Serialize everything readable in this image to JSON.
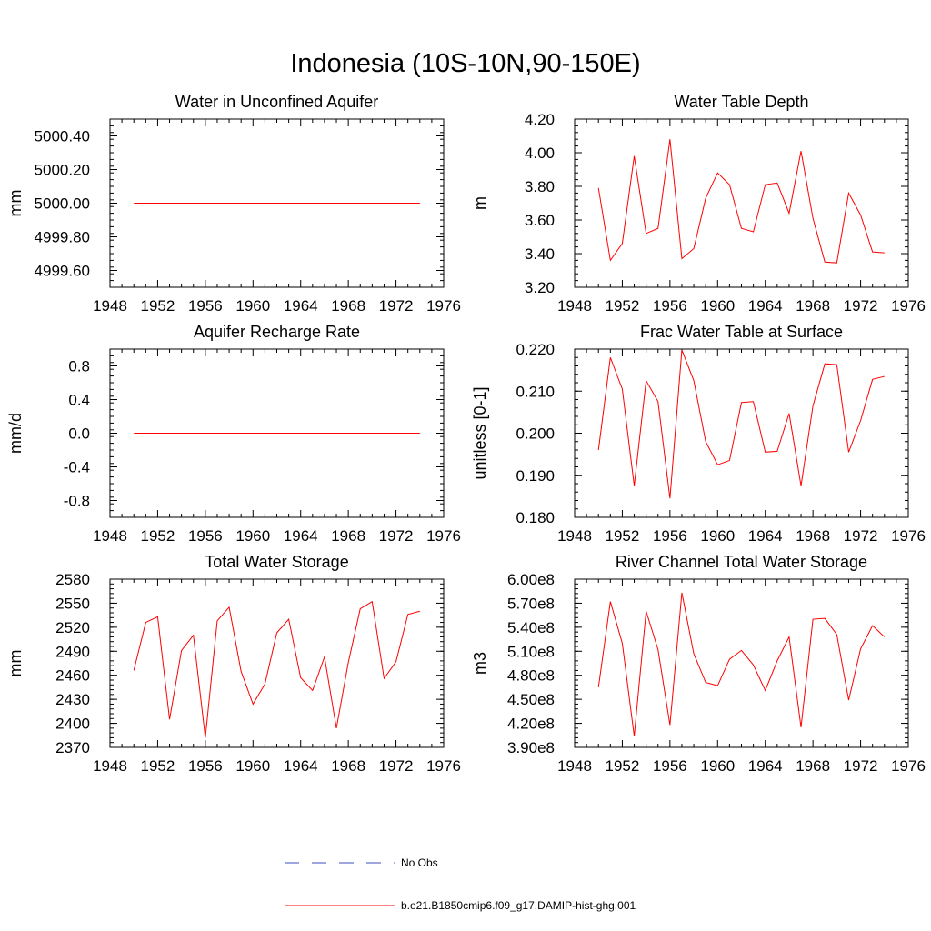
{
  "figure_title": "Indonesia (10S-10N,90-150E)",
  "colors": {
    "model_line": "#ff0000",
    "obs_line": "#3b4cc0",
    "axis": "#000000"
  },
  "legend": {
    "entries": [
      {
        "label": "No Obs",
        "style": "dashed",
        "color": "#3b4cc0"
      },
      {
        "label": "b.e21.B1850cmip6.f09_g17.DAMIP-hist-ghg.001",
        "style": "solid",
        "color": "#ff0000"
      }
    ]
  },
  "chart_data": [
    {
      "type": "line",
      "title": "Water in Unconfined Aquifer",
      "xlabel": "",
      "ylabel": "mm",
      "xlim": [
        1948,
        1976
      ],
      "ylim": [
        4999.5,
        5000.5
      ],
      "xticks": [
        1948,
        1952,
        1956,
        1960,
        1964,
        1968,
        1972,
        1976
      ],
      "yticks": [
        4999.6,
        4999.8,
        5000.0,
        5000.2,
        5000.4
      ],
      "ytick_labels": [
        "4999.60",
        "4999.80",
        "5000.00",
        "5000.20",
        "5000.40"
      ],
      "series": [
        {
          "x": [
            1950,
            1951,
            1952,
            1953,
            1954,
            1955,
            1956,
            1957,
            1958,
            1959,
            1960,
            1961,
            1962,
            1963,
            1964,
            1965,
            1966,
            1967,
            1968,
            1969,
            1970,
            1971,
            1972,
            1973,
            1974
          ],
          "values": [
            5000,
            5000,
            5000,
            5000,
            5000,
            5000,
            5000,
            5000,
            5000,
            5000,
            5000,
            5000,
            5000,
            5000,
            5000,
            5000,
            5000,
            5000,
            5000,
            5000,
            5000,
            5000,
            5000,
            5000,
            5000
          ]
        }
      ]
    },
    {
      "type": "line",
      "title": "Water Table Depth",
      "xlabel": "",
      "ylabel": "m",
      "xlim": [
        1948,
        1976
      ],
      "ylim": [
        3.2,
        4.2
      ],
      "xticks": [
        1948,
        1952,
        1956,
        1960,
        1964,
        1968,
        1972,
        1976
      ],
      "yticks": [
        3.2,
        3.4,
        3.6,
        3.8,
        4.0,
        4.2
      ],
      "ytick_labels": [
        "3.20",
        "3.40",
        "3.60",
        "3.80",
        "4.00",
        "4.20"
      ],
      "series": [
        {
          "x": [
            1950,
            1951,
            1952,
            1953,
            1954,
            1955,
            1956,
            1957,
            1958,
            1959,
            1960,
            1961,
            1962,
            1963,
            1964,
            1965,
            1966,
            1967,
            1968,
            1969,
            1970,
            1971,
            1972,
            1973,
            1974
          ],
          "values": [
            3.79,
            3.36,
            3.46,
            3.98,
            3.52,
            3.55,
            4.08,
            3.37,
            3.43,
            3.73,
            3.88,
            3.81,
            3.55,
            3.53,
            3.81,
            3.82,
            3.64,
            4.01,
            3.61,
            3.35,
            3.345,
            3.76,
            3.63,
            3.41,
            3.405
          ]
        }
      ]
    },
    {
      "type": "line",
      "title": "Aquifer Recharge Rate",
      "xlabel": "",
      "ylabel": "mm/d",
      "xlim": [
        1948,
        1976
      ],
      "ylim": [
        -1.0,
        1.0
      ],
      "xticks": [
        1948,
        1952,
        1956,
        1960,
        1964,
        1968,
        1972,
        1976
      ],
      "yticks": [
        -0.8,
        -0.4,
        0.0,
        0.4,
        0.8
      ],
      "ytick_labels": [
        "-0.8",
        "-0.4",
        "0.0",
        "0.4",
        "0.8"
      ],
      "series": [
        {
          "x": [
            1950,
            1951,
            1952,
            1953,
            1954,
            1955,
            1956,
            1957,
            1958,
            1959,
            1960,
            1961,
            1962,
            1963,
            1964,
            1965,
            1966,
            1967,
            1968,
            1969,
            1970,
            1971,
            1972,
            1973,
            1974
          ],
          "values": [
            0,
            0,
            0,
            0,
            0,
            0,
            0,
            0,
            0,
            0,
            0,
            0,
            0,
            0,
            0,
            0,
            0,
            0,
            0,
            0,
            0,
            0,
            0,
            0,
            0
          ]
        }
      ]
    },
    {
      "type": "line",
      "title": "Frac Water Table at Surface",
      "xlabel": "",
      "ylabel": "unitless [0-1]",
      "xlim": [
        1948,
        1976
      ],
      "ylim": [
        0.18,
        0.22
      ],
      "xticks": [
        1948,
        1952,
        1956,
        1960,
        1964,
        1968,
        1972,
        1976
      ],
      "yticks": [
        0.18,
        0.19,
        0.2,
        0.21,
        0.22
      ],
      "ytick_labels": [
        "0.180",
        "0.190",
        "0.200",
        "0.210",
        "0.220"
      ],
      "series": [
        {
          "x": [
            1950,
            1951,
            1952,
            1953,
            1954,
            1955,
            1956,
            1957,
            1958,
            1959,
            1960,
            1961,
            1962,
            1963,
            1964,
            1965,
            1966,
            1967,
            1968,
            1969,
            1970,
            1971,
            1972,
            1973,
            1974
          ],
          "values": [
            0.196,
            0.218,
            0.2105,
            0.1875,
            0.2125,
            0.2075,
            0.1845,
            0.2198,
            0.2125,
            0.198,
            0.1925,
            0.1935,
            0.2073,
            0.2075,
            0.1955,
            0.1957,
            0.2047,
            0.1875,
            0.2065,
            0.2165,
            0.2163,
            0.1955,
            0.203,
            0.2128,
            0.2135
          ]
        }
      ]
    },
    {
      "type": "line",
      "title": "Total Water Storage",
      "xlabel": "",
      "ylabel": "mm",
      "xlim": [
        1948,
        1976
      ],
      "ylim": [
        2370,
        2580
      ],
      "xticks": [
        1948,
        1952,
        1956,
        1960,
        1964,
        1968,
        1972,
        1976
      ],
      "yticks": [
        2370,
        2400,
        2430,
        2460,
        2490,
        2520,
        2550,
        2580
      ],
      "ytick_labels": [
        "2370",
        "2400",
        "2430",
        "2460",
        "2490",
        "2520",
        "2550",
        "2580"
      ],
      "series": [
        {
          "x": [
            1950,
            1951,
            1952,
            1953,
            1954,
            1955,
            1956,
            1957,
            1958,
            1959,
            1960,
            1961,
            1962,
            1963,
            1964,
            1965,
            1966,
            1967,
            1968,
            1969,
            1970,
            1971,
            1972,
            1973,
            1974
          ],
          "values": [
            2466,
            2526,
            2533,
            2405,
            2491,
            2510,
            2382,
            2528,
            2545,
            2465,
            2424,
            2449,
            2513,
            2530,
            2457,
            2441,
            2483,
            2394,
            2476,
            2543,
            2552,
            2456,
            2477,
            2536,
            2540
          ]
        }
      ]
    },
    {
      "type": "line",
      "title": "River Channel Total Water Storage",
      "xlabel": "",
      "ylabel": "m3",
      "xlim": [
        1948,
        1976
      ],
      "ylim": [
        390000000,
        600000000
      ],
      "xticks": [
        1948,
        1952,
        1956,
        1960,
        1964,
        1968,
        1972,
        1976
      ],
      "yticks": [
        390000000,
        420000000,
        450000000,
        480000000,
        510000000,
        540000000,
        570000000,
        600000000
      ],
      "ytick_labels": [
        "3.90e8",
        "4.20e8",
        "4.50e8",
        "4.80e8",
        "5.10e8",
        "5.40e8",
        "5.70e8",
        "6.00e8"
      ],
      "series": [
        {
          "x": [
            1950,
            1951,
            1952,
            1953,
            1954,
            1955,
            1956,
            1957,
            1958,
            1959,
            1960,
            1961,
            1962,
            1963,
            1964,
            1965,
            1966,
            1967,
            1968,
            1969,
            1970,
            1971,
            1972,
            1973,
            1974
          ],
          "values": [
            465000000,
            572000000,
            520000000,
            404000000,
            560000000,
            512000000,
            418000000,
            583000000,
            507000000,
            471000000,
            467000000,
            500000000,
            511000000,
            493000000,
            461000000,
            498000000,
            528000000,
            415000000,
            550000000,
            551000000,
            531000000,
            449000000,
            513000000,
            542000000,
            528000000
          ]
        }
      ]
    }
  ]
}
